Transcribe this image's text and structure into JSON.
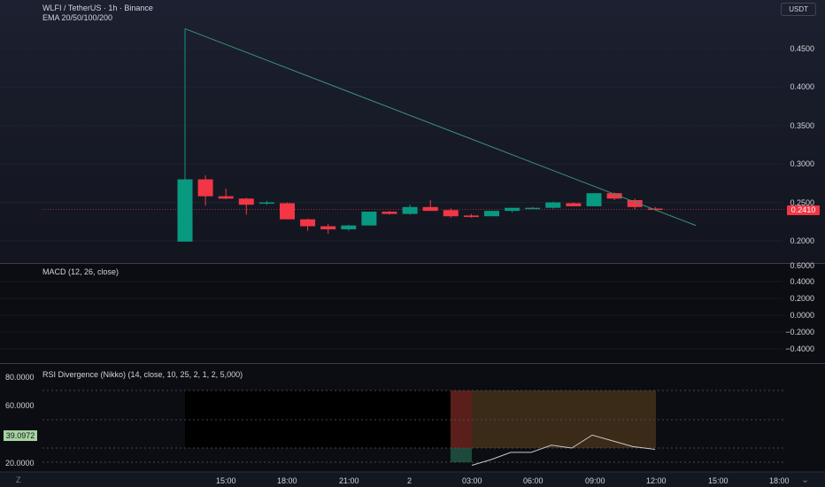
{
  "header": {
    "symbol_line": "WLFI / TetherUS · 1h · Binance",
    "indicator_line": "EMA 20/50/100/200",
    "currency_button": "USDT"
  },
  "main_price_axis": [
    "0.4500",
    "0.4000",
    "0.3500",
    "0.3000",
    "0.2500",
    "0.2000"
  ],
  "current_price": "0.2410",
  "macd": {
    "title": "MACD (12, 26, close)",
    "axis": [
      "0.6000",
      "0.4000",
      "0.2000",
      "0.0000",
      "−0.2000",
      "−0.4000"
    ]
  },
  "rsi": {
    "title": "RSI Divergence (Nikko) (14, close, 10, 25, 2, 1, 2, 5,000)",
    "axis": [
      "80.0000",
      "60.0000",
      "20.0000"
    ],
    "current_value": "39.0972"
  },
  "time_axis": [
    "15:00",
    "18:00",
    "21:00",
    "2",
    "03:00",
    "06:00",
    "09:00",
    "12:00",
    "15:00",
    "18:00"
  ],
  "corner_left": "Z",
  "corner_right": "chevron-down",
  "colors": {
    "up": "#089981",
    "down": "#f23645",
    "trendline": "#3f8f7b"
  },
  "chart_data": {
    "type": "candlestick",
    "ohlc": [
      [
        0.28,
        0.476,
        0.199,
        0.199
      ],
      [
        0.28,
        0.285,
        0.246,
        0.258
      ],
      [
        0.258,
        0.268,
        0.254,
        0.255
      ],
      [
        0.255,
        0.256,
        0.234,
        0.247
      ],
      [
        0.249,
        0.252,
        0.247,
        0.25
      ],
      [
        0.249,
        0.25,
        0.228,
        0.228
      ],
      [
        0.228,
        0.229,
        0.213,
        0.219
      ],
      [
        0.219,
        0.222,
        0.209,
        0.215
      ],
      [
        0.215,
        0.221,
        0.213,
        0.22
      ],
      [
        0.22,
        0.238,
        0.22,
        0.238
      ],
      [
        0.238,
        0.239,
        0.234,
        0.235
      ],
      [
        0.235,
        0.247,
        0.234,
        0.244
      ],
      [
        0.244,
        0.253,
        0.239,
        0.239
      ],
      [
        0.24,
        0.242,
        0.23,
        0.232
      ],
      [
        0.233,
        0.235,
        0.23,
        0.231
      ],
      [
        0.232,
        0.239,
        0.232,
        0.239
      ],
      [
        0.239,
        0.243,
        0.237,
        0.243
      ],
      [
        0.243,
        0.244,
        0.242,
        0.243
      ],
      [
        0.243,
        0.251,
        0.242,
        0.25
      ],
      [
        0.249,
        0.25,
        0.245,
        0.245
      ],
      [
        0.245,
        0.262,
        0.245,
        0.262
      ],
      [
        0.262,
        0.263,
        0.253,
        0.255
      ],
      [
        0.253,
        0.255,
        0.241,
        0.244
      ],
      [
        0.242,
        0.244,
        0.24,
        0.241
      ]
    ],
    "trendline": [
      [
        0.476
      ],
      [
        0.22
      ]
    ],
    "price_ylim": [
      0.17,
      0.48
    ],
    "rsi_line": [
      28.0,
      32.0,
      37.0,
      37.0,
      42.0,
      40.0,
      49.0,
      45.0,
      41.0,
      39.1
    ],
    "rsi_ylim": [
      15,
      85
    ]
  }
}
